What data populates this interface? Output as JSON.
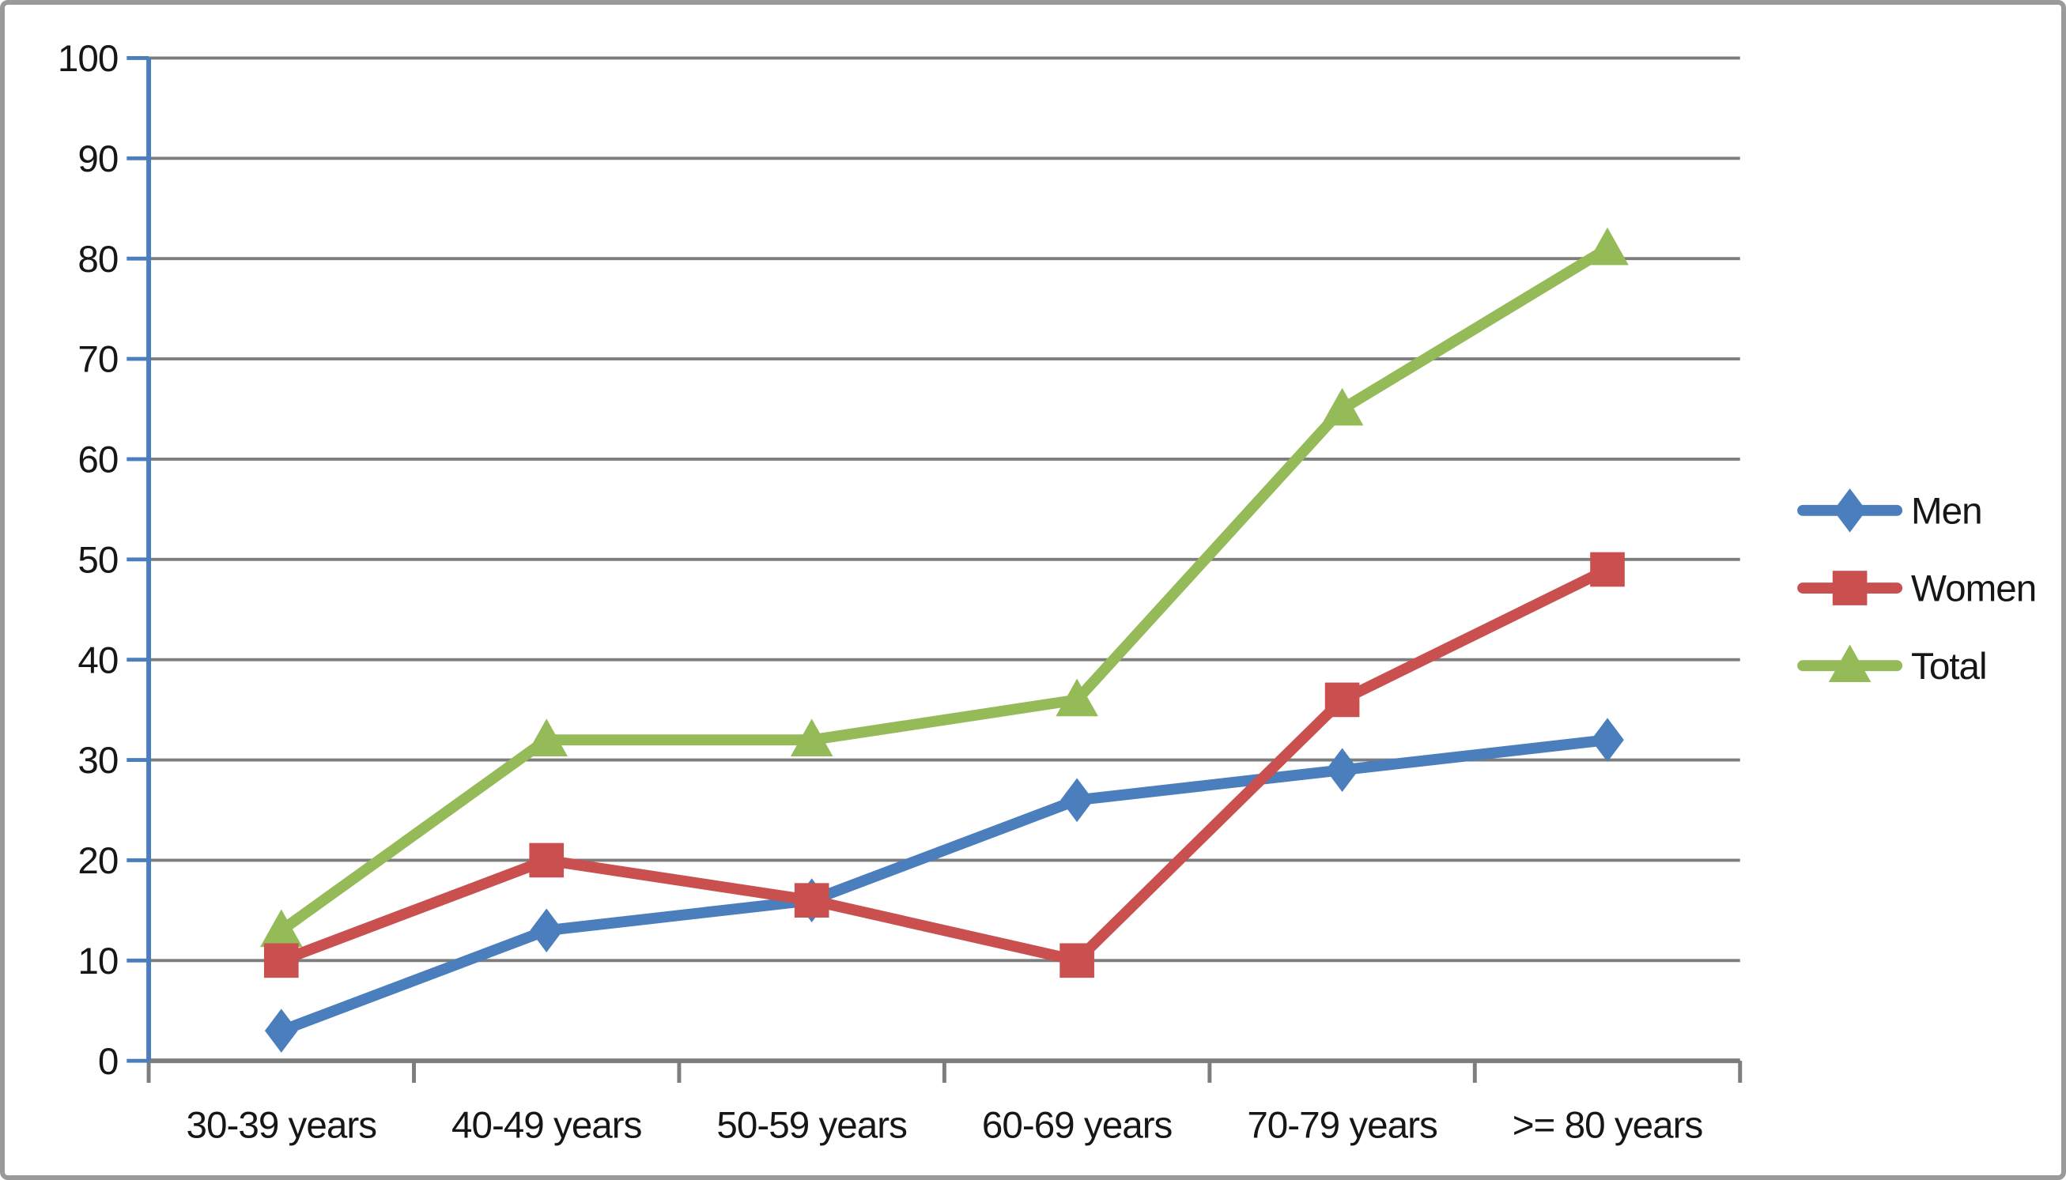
{
  "chart_data": {
    "type": "line",
    "title": "",
    "xlabel": "",
    "ylabel": "",
    "categories": [
      "30-39 years",
      "40-49 years",
      "50-59 years",
      "60-69 years",
      "70-79 years",
      ">= 80 years"
    ],
    "series": [
      {
        "name": "Men",
        "marker": "diamond",
        "color": "#4A7EBC",
        "values": [
          3,
          13,
          16,
          26,
          29,
          32
        ]
      },
      {
        "name": "Women",
        "marker": "square",
        "color": "#C9504E",
        "values": [
          10,
          20,
          16,
          10,
          36,
          49
        ]
      },
      {
        "name": "Total",
        "marker": "triangle",
        "color": "#94BB58",
        "values": [
          13,
          32,
          32,
          36,
          65,
          81
        ]
      }
    ],
    "ylim": [
      0,
      100
    ],
    "ytick_step": 10,
    "ytick_labels": [
      "0",
      "10",
      "20",
      "30",
      "40",
      "50",
      "60",
      "70",
      "80",
      "90",
      "100"
    ],
    "grid": true,
    "legend_position": "right",
    "legend_labels": [
      "Men",
      "Women",
      "Total"
    ],
    "colors": {
      "gridline": "#7d7d7d",
      "x_axis": "#7d7d7d",
      "y_axis": "#4A7EBC",
      "border": "#9a9a9a",
      "text": "#161616",
      "background": "#FFFFFF"
    }
  }
}
